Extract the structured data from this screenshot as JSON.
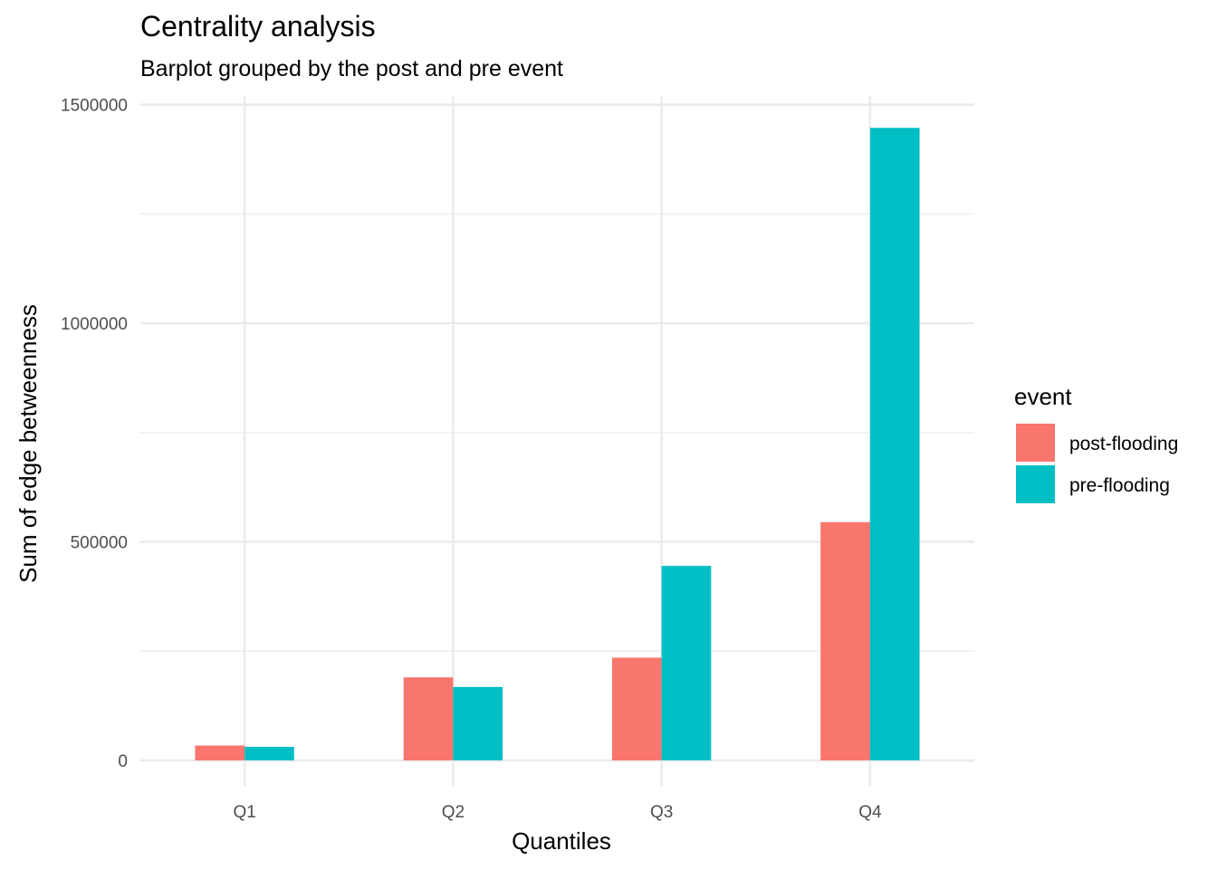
{
  "chart_data": {
    "type": "bar",
    "title": "Centrality analysis",
    "subtitle": "Barplot grouped by the post and pre event",
    "xlabel": "Quantiles",
    "ylabel": "Sum of edge betweenness",
    "categories": [
      "Q1",
      "Q2",
      "Q3",
      "Q4"
    ],
    "series": [
      {
        "name": "post-flooding",
        "color": "#F8766D",
        "values": [
          34000,
          190000,
          235000,
          545000
        ]
      },
      {
        "name": "pre-flooding",
        "color": "#00BFC4",
        "values": [
          31000,
          168000,
          445000,
          1447000
        ]
      }
    ],
    "ylim": [
      -60000,
      1520000
    ],
    "y_ticks": [
      0,
      500000,
      1000000,
      1500000
    ],
    "y_tick_labels": [
      "0",
      "500000",
      "1000000",
      "1500000"
    ],
    "grid": true,
    "legend": {
      "title": "event",
      "position": "right"
    }
  }
}
